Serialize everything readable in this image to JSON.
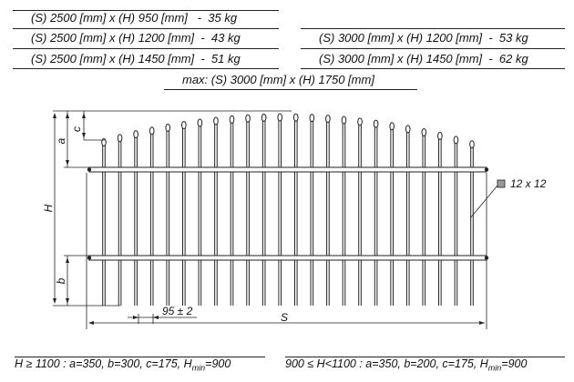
{
  "weights_left": [
    "(S) 2500 [mm] x (H) 950 [mm]   -  35 kg",
    "(S) 2500 [mm] x (H) 1200 [mm]  -  43 kg",
    "(S) 2500 [mm] x (H) 1450 [mm]  -  51 kg"
  ],
  "weights_right": [
    "(S) 3000 [mm] x (H) 1200 [mm]  -  53 kg",
    "(S) 3000 [mm] x (H) 1450 [mm]  -  62 kg"
  ],
  "max_size": "max: (S) 3000 [mm] x (H) 1750 [mm]",
  "labels": {
    "c": "c",
    "a": "a",
    "H": "H",
    "b": "b",
    "spacing": "95 ± 2",
    "S": "S",
    "bar_section": "12 x 12"
  },
  "notes": {
    "left": {
      "prefix": "H ≥ 1100 : a=350, b=300, c=175, H",
      "sub": "min",
      "suffix": "=900"
    },
    "right": {
      "prefix": "900 ≤ H<1100 : a=350, b=200, c=175, H",
      "sub": "min",
      "suffix": "=900"
    }
  },
  "colors": {
    "line": "#222222",
    "marker": "#999999"
  }
}
